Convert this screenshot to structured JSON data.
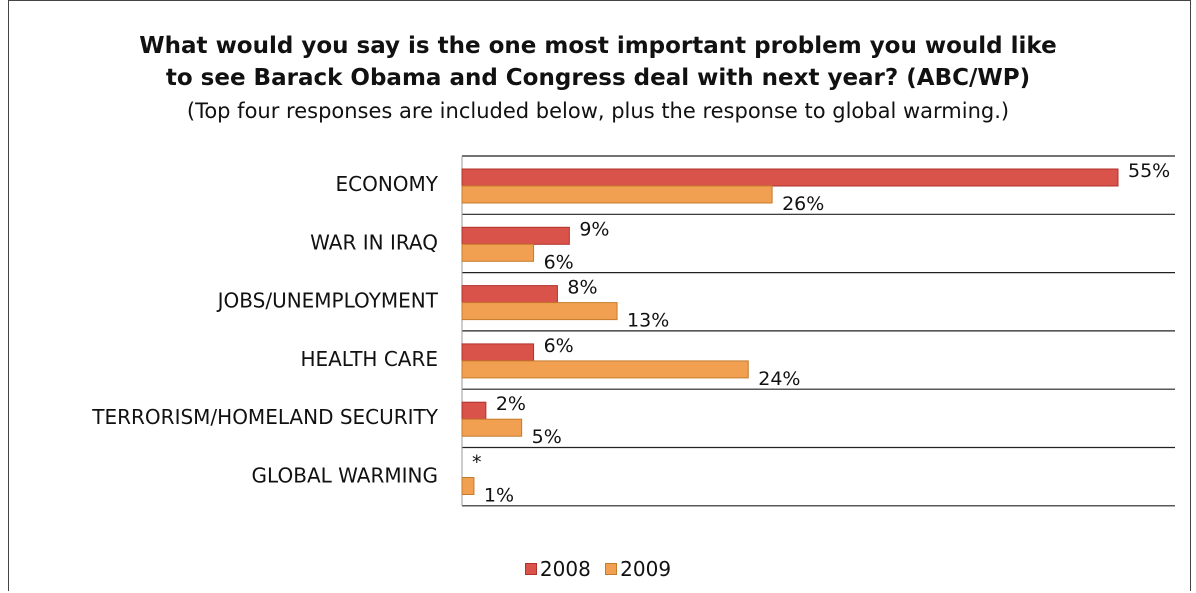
{
  "chart_data": {
    "type": "bar",
    "orientation": "horizontal",
    "title": "What would you say is the one most important problem you would like to see Barack Obama and Congress deal with next year?  (ABC/WP)",
    "title_line1": "What would you say is the one most important problem you would like",
    "title_line2": "to see Barack Obama and Congress deal with next year?  (ABC/WP)",
    "subtitle": "(Top four responses are included below, plus the response to global warming.)",
    "categories": [
      "ECONOMY",
      "WAR IN IRAQ",
      "JOBS/UNEMPLOYMENT",
      "HEALTH CARE",
      "TERRORISM/HOMELAND SECURITY",
      "GLOBAL WARMING"
    ],
    "series": [
      {
        "name": "2008",
        "values": [
          55,
          9,
          8,
          6,
          2,
          0
        ],
        "labels": [
          "55%",
          "9%",
          "8%",
          "6%",
          "2%",
          "*"
        ],
        "color": "#d9534a",
        "stroke": "#b0322b"
      },
      {
        "name": "2009",
        "values": [
          26,
          6,
          13,
          24,
          5,
          1
        ],
        "labels": [
          "26%",
          "6%",
          "13%",
          "24%",
          "5%",
          "1%"
        ],
        "color": "#f0a050",
        "stroke": "#c57b2c"
      }
    ],
    "xlim": [
      0,
      55
    ],
    "legend_position": "bottom",
    "grid": true
  }
}
